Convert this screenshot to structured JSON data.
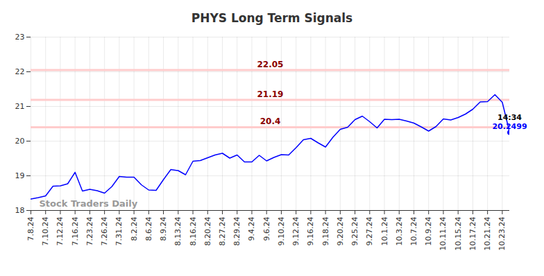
{
  "chart_data": {
    "type": "line",
    "title": "PHYS Long Term Signals",
    "watermark": "Stock Traders Daily",
    "categories": [
      "7.8.24",
      null,
      "7.10.24",
      null,
      "7.12.24",
      null,
      "7.16.24",
      null,
      "7.23.24",
      null,
      "7.26.24",
      null,
      "7.31.24",
      null,
      "8.2.24",
      null,
      "8.6.24",
      null,
      "8.9.24",
      null,
      "8.13.24",
      null,
      "8.16.24",
      null,
      "8.20.24",
      null,
      "8.27.24",
      null,
      "8.29.24",
      null,
      "9.4.24",
      null,
      "9.6.24",
      null,
      "9.10.24",
      null,
      "9.12.24",
      null,
      "9.16.24",
      null,
      "9.18.24",
      null,
      "9.20.24",
      null,
      "9.25.24",
      null,
      "9.27.24",
      null,
      "10.1.24",
      null,
      "10.3.24",
      null,
      "10.7.24",
      null,
      "10.9.24",
      null,
      "10.11.24",
      null,
      "10.15.24",
      null,
      "10.17.24",
      null,
      "10.21.24",
      null,
      "10.23.24",
      null
    ],
    "values": [
      18.33,
      18.37,
      18.42,
      18.7,
      18.71,
      18.77,
      19.1,
      18.56,
      18.61,
      18.57,
      18.5,
      18.69,
      18.98,
      18.96,
      18.96,
      18.74,
      18.59,
      18.58,
      18.89,
      19.18,
      19.15,
      19.03,
      19.42,
      19.44,
      19.52,
      19.6,
      19.65,
      19.51,
      19.6,
      19.4,
      19.4,
      19.59,
      19.43,
      19.53,
      19.61,
      19.6,
      19.81,
      20.04,
      20.08,
      19.95,
      19.83,
      20.11,
      20.34,
      20.4,
      20.62,
      20.72,
      20.56,
      20.38,
      20.63,
      20.62,
      20.63,
      20.58,
      20.52,
      20.41,
      20.29,
      20.42,
      20.64,
      20.61,
      20.68,
      20.78,
      20.92,
      21.13,
      21.14,
      21.34,
      21.12,
      20.2499
    ],
    "color": "#0000ff",
    "ylim": [
      18,
      23
    ],
    "yticks": [
      18,
      19,
      20,
      21,
      22,
      23
    ],
    "grid": true,
    "levels": [
      22.05,
      21.19,
      20.4
    ],
    "last_point": {
      "label": "14:34"
    }
  }
}
